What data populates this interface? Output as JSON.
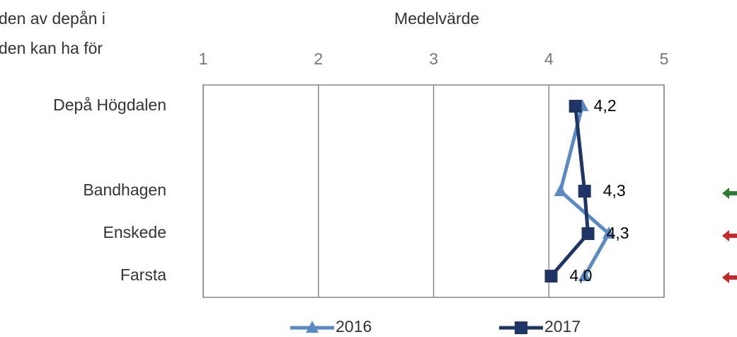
{
  "chart_data": {
    "type": "line",
    "notes_text": [
      "den av depån i",
      "den kan ha för"
    ],
    "xlabel": "Medelvärde",
    "categories": [
      "Depå Högdalen",
      "Bandhagen",
      "Enskede",
      "Farsta"
    ],
    "series": [
      {
        "name": "2016",
        "color": "#5a8ac3",
        "marker": "triangle",
        "values": [
          4.29,
          4.1,
          4.52,
          4.31
        ]
      },
      {
        "name": "2017",
        "color": "#1f3566",
        "marker": "square",
        "values": [
          4.23,
          4.31,
          4.34,
          4.02
        ],
        "value_labels": [
          "4,2",
          "4,3",
          "4,3",
          "4,0"
        ]
      }
    ],
    "xlim": [
      1,
      5
    ],
    "xticks": [
      1,
      2,
      3,
      4,
      5
    ],
    "grid": true,
    "legend": "bottom"
  }
}
